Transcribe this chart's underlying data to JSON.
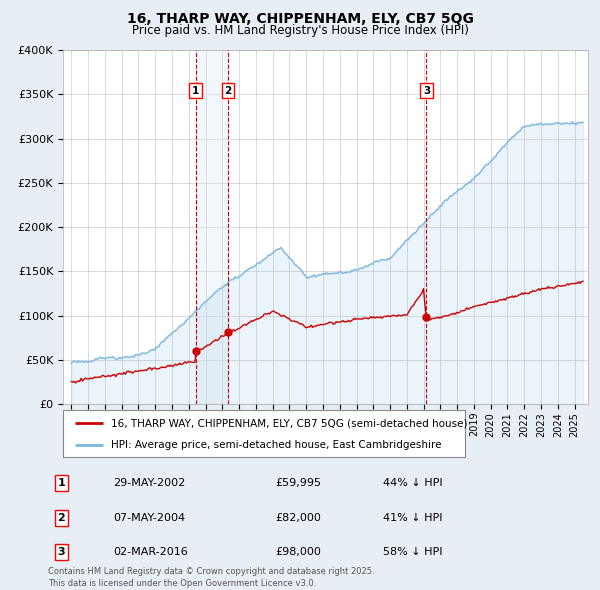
{
  "title": "16, THARP WAY, CHIPPENHAM, ELY, CB7 5QG",
  "subtitle": "Price paid vs. HM Land Registry's House Price Index (HPI)",
  "legend_property": "16, THARP WAY, CHIPPENHAM, ELY, CB7 5QG (semi-detached house)",
  "legend_hpi": "HPI: Average price, semi-detached house, East Cambridgeshire",
  "footer": "Contains HM Land Registry data © Crown copyright and database right 2025.\nThis data is licensed under the Open Government Licence v3.0.",
  "sales": [
    {
      "num": 1,
      "date": "29-MAY-2002",
      "price": 59995,
      "pct": "44% ↓ HPI",
      "year": 2002.41
    },
    {
      "num": 2,
      "date": "07-MAY-2004",
      "price": 82000,
      "pct": "41% ↓ HPI",
      "year": 2004.35
    },
    {
      "num": 3,
      "date": "02-MAR-2016",
      "price": 98000,
      "pct": "58% ↓ HPI",
      "year": 2016.17
    }
  ],
  "ylim": [
    0,
    400000
  ],
  "xlim": [
    1994.5,
    2025.8
  ],
  "yticks": [
    0,
    50000,
    100000,
    150000,
    200000,
    250000,
    300000,
    350000,
    400000
  ],
  "ytick_labels": [
    "£0",
    "£50K",
    "£100K",
    "£150K",
    "£200K",
    "£250K",
    "£300K",
    "£350K",
    "£400K"
  ],
  "background_color": "#e8eef5",
  "plot_bg": "#ffffff",
  "property_color": "#cc0000",
  "hpi_color": "#7ab8e0",
  "hpi_fill_color": "#c8dff0",
  "vline_color": "#cc0000",
  "shade_color": "#daeaf5",
  "grid_color": "#cccccc"
}
